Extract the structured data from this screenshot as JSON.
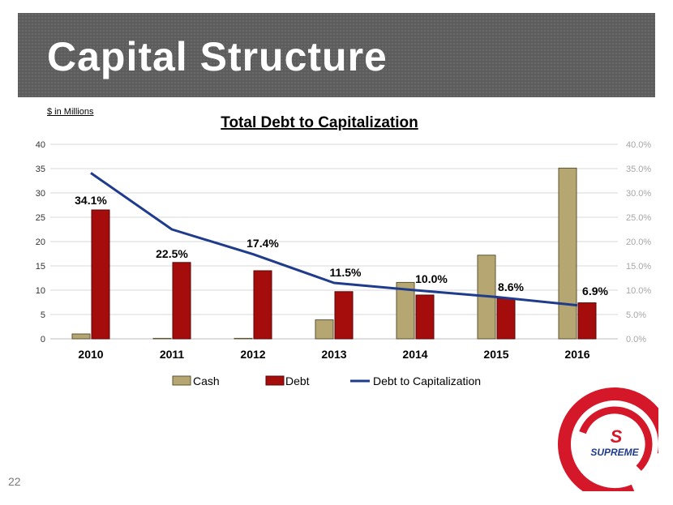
{
  "slide": {
    "title": "Capital Structure",
    "units_note": "$ in Millions",
    "page_number": "22",
    "logo_text": "SUPREME",
    "logo_mark": "S"
  },
  "colors": {
    "title_band": "#5d5d5d",
    "cash": "#b5a672",
    "debt": "#a50d0d",
    "line": "#1f3b8c",
    "logo_red": "#d5172a"
  },
  "chart_data": {
    "type": "bar",
    "title": "Total Debt to Capitalization",
    "categories": [
      "2010",
      "2011",
      "2012",
      "2013",
      "2014",
      "2015",
      "2016"
    ],
    "series": [
      {
        "name": "Cash",
        "type": "bar",
        "axis": "left",
        "values": [
          1.0,
          0.1,
          0.1,
          3.9,
          11.6,
          17.2,
          35.1
        ]
      },
      {
        "name": "Debt",
        "type": "bar",
        "axis": "left",
        "values": [
          26.5,
          15.7,
          14.0,
          9.7,
          9.0,
          8.3,
          7.4
        ]
      },
      {
        "name": "Debt to Capitalization",
        "type": "line",
        "axis": "right",
        "values": [
          34.1,
          22.5,
          17.4,
          11.5,
          10.0,
          8.6,
          6.9
        ]
      }
    ],
    "data_labels": [
      "34.1%",
      "22.5%",
      "17.4%",
      "11.5%",
      "10.0%",
      "8.6%",
      "6.9%"
    ],
    "y_left": {
      "min": 0,
      "max": 40,
      "ticks": [
        "0",
        "5",
        "10",
        "15",
        "20",
        "25",
        "30",
        "35",
        "40"
      ]
    },
    "y_right": {
      "min": 0,
      "max": 40,
      "ticks": [
        "0.0%",
        "5.0%",
        "10.0%",
        "15.0%",
        "20.0%",
        "25.0%",
        "30.0%",
        "35.0%",
        "40.0%"
      ]
    },
    "legend": {
      "position": "bottom",
      "entries": [
        "Cash",
        "Debt",
        "Debt to Capitalization"
      ]
    },
    "grid": true
  }
}
